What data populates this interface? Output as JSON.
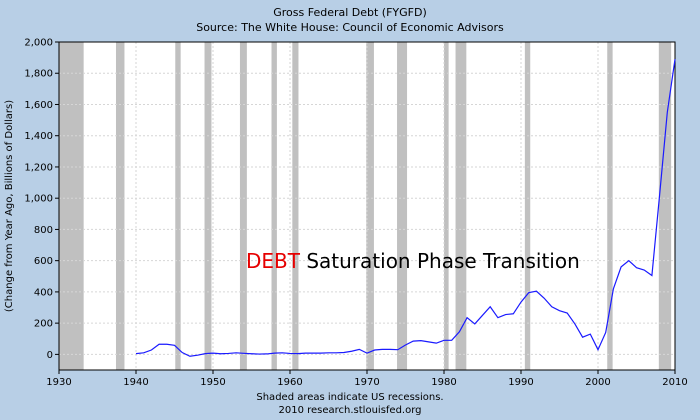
{
  "chart_data": {
    "type": "line",
    "title": "Gross Federal Debt (FYGFD)",
    "subtitle": "Source: The White House: Council of Economic Advisors",
    "ylabel": "(Change from Year Ago, Billions of Dollars)",
    "xlabel": "",
    "xlim": [
      1930,
      2010
    ],
    "ylim": [
      -100,
      2000
    ],
    "x_ticks": [
      1930,
      1940,
      1950,
      1960,
      1970,
      1980,
      1990,
      2000,
      2010
    ],
    "y_ticks": [
      0,
      200,
      400,
      600,
      800,
      1000,
      1200,
      1400,
      1600,
      1800,
      2000
    ],
    "y_tick_labels": [
      "0",
      "200",
      "400",
      "600",
      "800",
      "1,000",
      "1,200",
      "1,400",
      "1,600",
      "1,800",
      "2,000"
    ],
    "grid": true,
    "series_color": "#1a1aff",
    "recession_color": "#c0c0c0",
    "recessions": [
      [
        1929.6,
        1933.2
      ],
      [
        1937.4,
        1938.5
      ],
      [
        1945.1,
        1945.8
      ],
      [
        1948.9,
        1949.8
      ],
      [
        1953.5,
        1954.4
      ],
      [
        1957.6,
        1958.3
      ],
      [
        1960.3,
        1961.1
      ],
      [
        1969.9,
        1970.9
      ],
      [
        1973.9,
        1975.2
      ],
      [
        1980.0,
        1980.6
      ],
      [
        1981.5,
        1982.9
      ],
      [
        1990.5,
        1991.2
      ],
      [
        2001.2,
        2001.9
      ],
      [
        2007.9,
        2009.5
      ]
    ],
    "series": [
      {
        "x": [
          1940,
          1941,
          1942,
          1943,
          1944,
          1945,
          1946,
          1947,
          1948,
          1949,
          1950,
          1951,
          1952,
          1953,
          1954,
          1955,
          1956,
          1957,
          1958,
          1959,
          1960,
          1961,
          1962,
          1963,
          1964,
          1965,
          1966,
          1967,
          1968,
          1969,
          1970,
          1971,
          1972,
          1973,
          1974,
          1975,
          1976,
          1977,
          1978,
          1979,
          1980,
          1981,
          1982,
          1983,
          1984,
          1985,
          1986,
          1987,
          1988,
          1989,
          1990,
          1991,
          1992,
          1993,
          1994,
          1995,
          1996,
          1997,
          1998,
          1999,
          2000,
          2001,
          2002,
          2003,
          2004,
          2005,
          2006,
          2007,
          2008,
          2009,
          2010
        ],
        "values": [
          5,
          10,
          28,
          65,
          65,
          58,
          12,
          -12,
          -5,
          5,
          8,
          4,
          6,
          10,
          7,
          4,
          2,
          3,
          8,
          10,
          6,
          5,
          8,
          8,
          8,
          10,
          10,
          12,
          20,
          32,
          8,
          28,
          32,
          32,
          30,
          60,
          85,
          88,
          80,
          72,
          90,
          90,
          145,
          235,
          195,
          250,
          305,
          235,
          255,
          260,
          335,
          395,
          405,
          360,
          305,
          280,
          265,
          195,
          110,
          130,
          30,
          140,
          420,
          560,
          600,
          555,
          540,
          505,
          1020,
          1550,
          1890
        ]
      }
    ],
    "annotation": {
      "red": "DEBT",
      "rest": " Saturation Phase Transition",
      "red_color": "#e60000"
    },
    "footnote": "Shaded areas indicate US recessions.",
    "credit": "2010 research.stlouisfed.org"
  }
}
